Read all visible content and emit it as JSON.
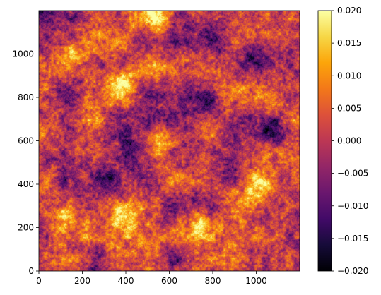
{
  "chart_data": {
    "type": "heatmap",
    "title": "",
    "xlabel": "",
    "ylabel": "",
    "xlim": [
      0,
      1200
    ],
    "ylim": [
      0,
      1200
    ],
    "x_ticks": [
      0,
      200,
      400,
      600,
      800,
      1000
    ],
    "x_tick_labels": [
      "0",
      "200",
      "400",
      "600",
      "800",
      "1000"
    ],
    "y_ticks": [
      0,
      200,
      400,
      600,
      800,
      1000
    ],
    "y_tick_labels": [
      "0",
      "200",
      "400",
      "600",
      "800",
      "1000"
    ],
    "colormap": "inferno",
    "colorbar": {
      "range": [
        -0.02,
        0.02
      ],
      "ticks": [
        0.02,
        0.015,
        0.01,
        0.005,
        0.0,
        -0.005,
        -0.01,
        -0.015,
        -0.02
      ],
      "tick_labels": [
        "0.020",
        "0.015",
        "0.010",
        "0.005",
        "0.000",
        "−0.005",
        "−0.010",
        "−0.015",
        "−0.020"
      ]
    },
    "bright_regions": [
      {
        "x": 120,
        "y": 240,
        "value": 0.02
      },
      {
        "x": 400,
        "y": 260,
        "value": 0.02
      },
      {
        "x": 1000,
        "y": 360,
        "value": 0.02
      },
      {
        "x": 560,
        "y": 600,
        "value": 0.018
      },
      {
        "x": 380,
        "y": 880,
        "value": 0.018
      },
      {
        "x": 540,
        "y": 1160,
        "value": 0.02
      },
      {
        "x": 150,
        "y": 1000,
        "value": 0.016
      },
      {
        "x": 250,
        "y": 700,
        "value": 0.015
      },
      {
        "x": 740,
        "y": 220,
        "value": 0.016
      },
      {
        "x": 20,
        "y": 620,
        "value": 0.014
      }
    ],
    "dark_regions": [
      {
        "x": 1080,
        "y": 640,
        "value": -0.02
      },
      {
        "x": 760,
        "y": 760,
        "value": -0.018
      },
      {
        "x": 300,
        "y": 420,
        "value": -0.016
      },
      {
        "x": 900,
        "y": 560,
        "value": -0.016
      },
      {
        "x": 460,
        "y": 560,
        "value": -0.015
      },
      {
        "x": 1000,
        "y": 980,
        "value": -0.016
      },
      {
        "x": 820,
        "y": 1080,
        "value": -0.014
      }
    ]
  }
}
